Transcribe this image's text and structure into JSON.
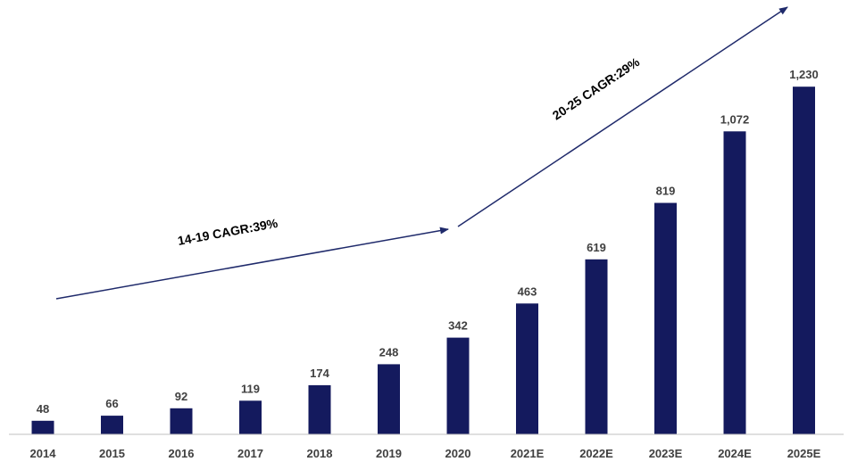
{
  "chart_data": {
    "type": "bar",
    "categories": [
      "2014",
      "2015",
      "2016",
      "2017",
      "2018",
      "2019",
      "2020",
      "2021E",
      "2022E",
      "2023E",
      "2024E",
      "2025E"
    ],
    "values": [
      48,
      66,
      92,
      119,
      174,
      248,
      342,
      463,
      619,
      819,
      1072,
      1230
    ],
    "value_labels": [
      "48",
      "66",
      "92",
      "119",
      "174",
      "248",
      "342",
      "463",
      "619",
      "819",
      "1,072",
      "1,230"
    ],
    "ylim": [
      0,
      1480
    ],
    "grid": false,
    "legend": "none",
    "colors": {
      "bar": "#141a5e",
      "axis": "#bfbfbf",
      "arrow": "#1f2a6b",
      "label": "#404040"
    },
    "annotations": [
      {
        "text": "14-19 CAGR:39%",
        "from": "2014",
        "to": "2020"
      },
      {
        "text": "20-25 CAGR:29%",
        "from": "2020",
        "to": "2025E"
      }
    ]
  }
}
